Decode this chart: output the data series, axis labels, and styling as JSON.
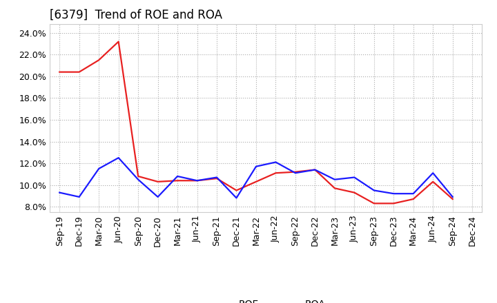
{
  "title": "[6379]  Trend of ROE and ROA",
  "x_labels": [
    "Sep-19",
    "Dec-19",
    "Mar-20",
    "Jun-20",
    "Sep-20",
    "Dec-20",
    "Mar-21",
    "Jun-21",
    "Sep-21",
    "Dec-21",
    "Mar-22",
    "Jun-22",
    "Sep-22",
    "Dec-22",
    "Mar-23",
    "Jun-23",
    "Sep-23",
    "Dec-23",
    "Mar-24",
    "Jun-24",
    "Sep-24",
    "Dec-24"
  ],
  "roe": [
    20.4,
    20.4,
    21.5,
    23.2,
    10.8,
    10.3,
    10.4,
    10.4,
    10.6,
    9.5,
    10.3,
    11.1,
    11.2,
    11.4,
    9.7,
    9.3,
    8.3,
    8.3,
    8.7,
    10.3,
    8.7,
    null
  ],
  "roa": [
    9.3,
    8.9,
    11.5,
    12.5,
    10.5,
    8.9,
    10.8,
    10.4,
    10.7,
    8.8,
    11.7,
    12.1,
    11.1,
    11.4,
    10.5,
    10.7,
    9.5,
    9.2,
    9.2,
    11.1,
    8.9,
    null
  ],
  "roe_color": "#e82020",
  "roa_color": "#1a1aff",
  "ylim": [
    7.5,
    24.8
  ],
  "yticks": [
    8.0,
    10.0,
    12.0,
    14.0,
    16.0,
    18.0,
    20.0,
    22.0,
    24.0
  ],
  "background_color": "#ffffff",
  "plot_bg_color": "#ffffff",
  "grid_color": "#aaaaaa",
  "title_fontsize": 12,
  "legend_fontsize": 10,
  "tick_fontsize": 9
}
